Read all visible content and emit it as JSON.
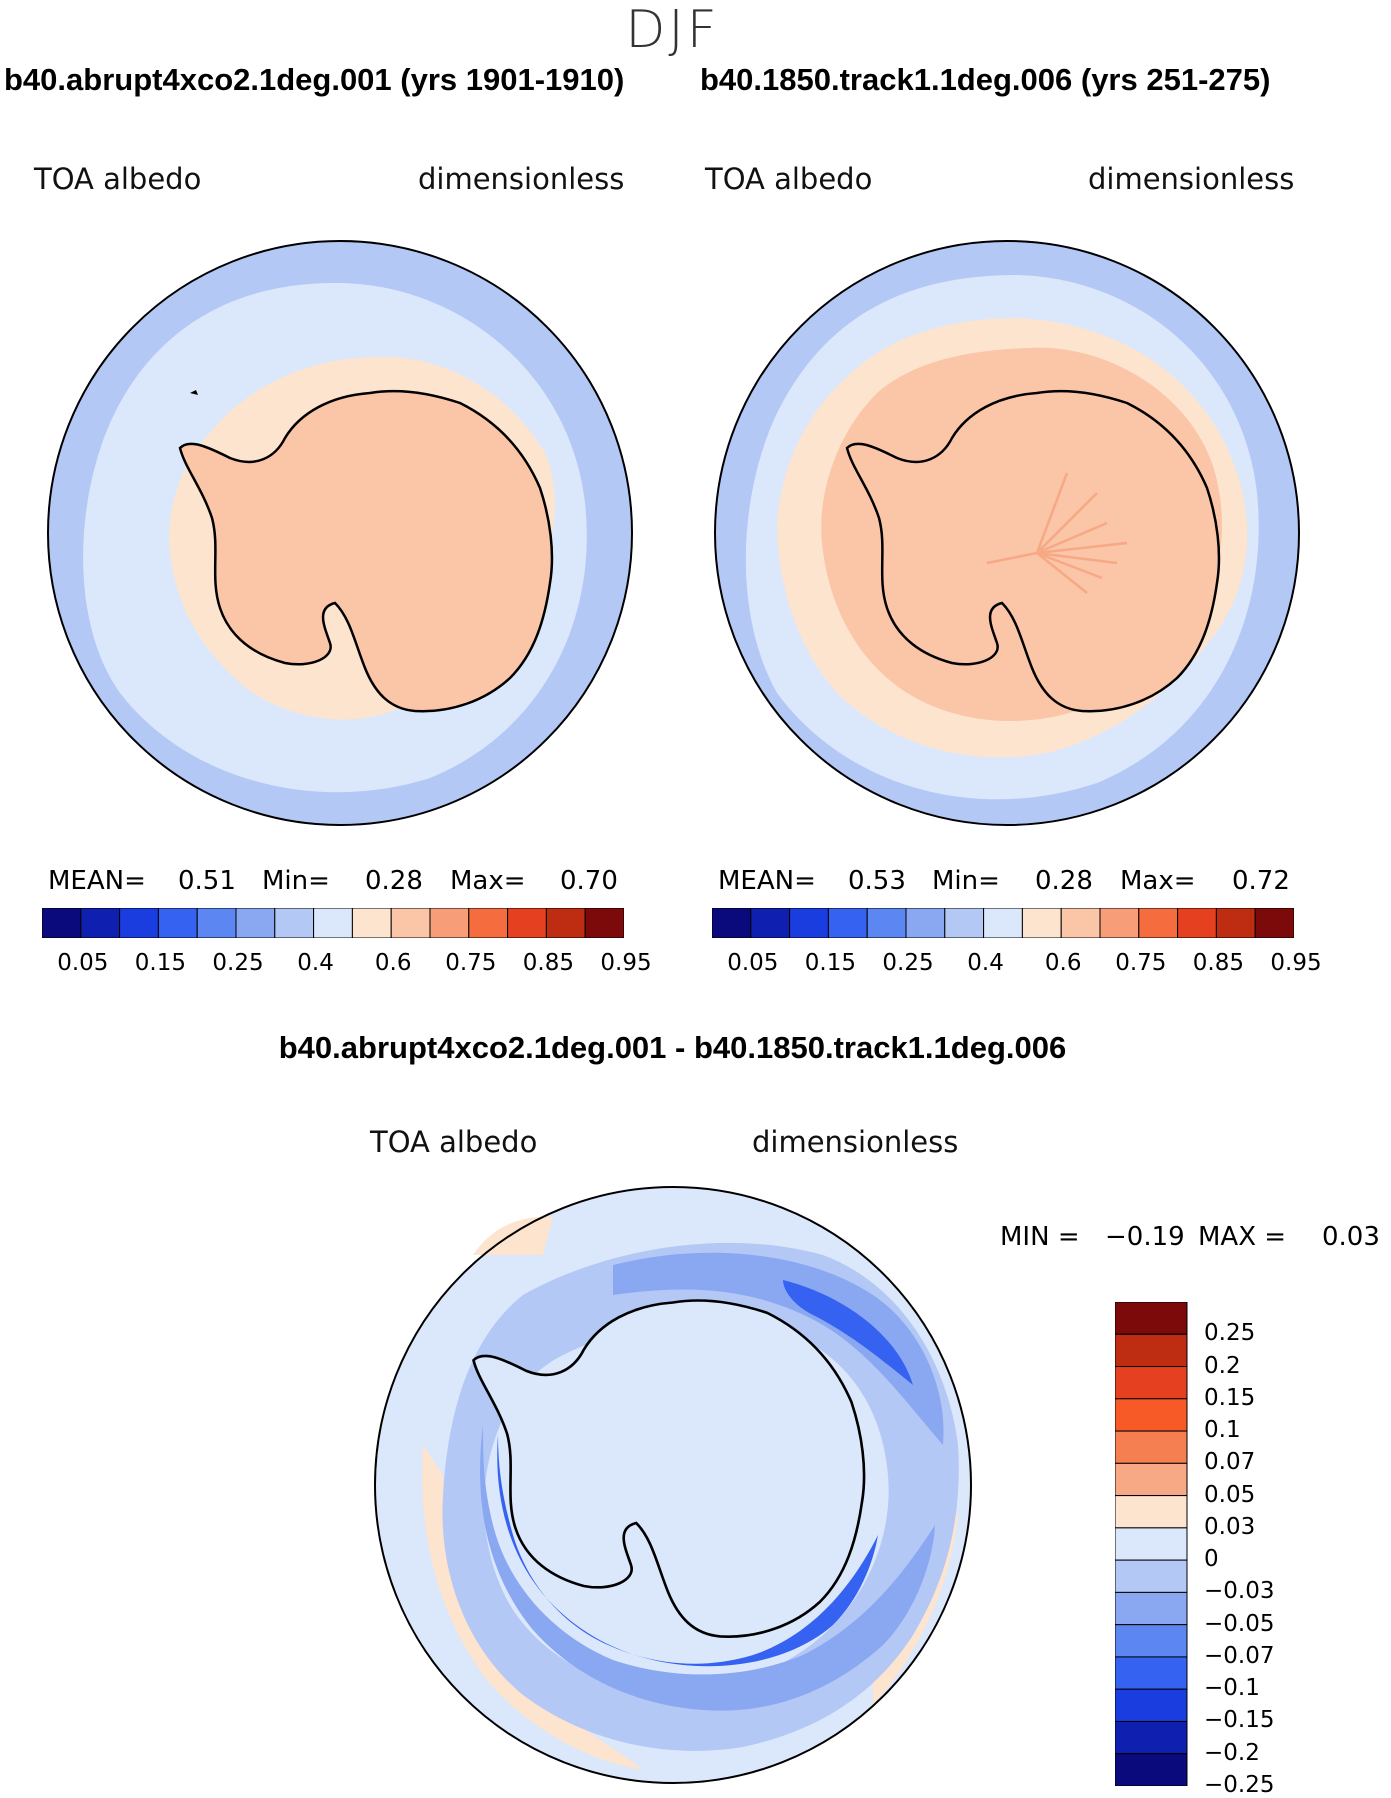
{
  "title": "DJF",
  "panels": {
    "left": {
      "case_title": "b40.abrupt4xco2.1deg.001 (yrs 1901-1910)",
      "variable": "TOA albedo",
      "units": "dimensionless",
      "mean_label": "MEAN=",
      "mean_value": "0.51",
      "min_label": "Min=",
      "min_value": "0.28",
      "max_label": "Max=",
      "max_value": "0.70"
    },
    "right": {
      "case_title": "b40.1850.track1.1deg.006 (yrs 251-275)",
      "variable": "TOA albedo",
      "units": "dimensionless",
      "mean_label": "MEAN=",
      "mean_value": "0.53",
      "min_label": "Min=",
      "min_value": "0.28",
      "max_label": "Max=",
      "max_value": "0.72"
    },
    "diff": {
      "case_title": "b40.abrupt4xco2.1deg.001 - b40.1850.track1.1deg.006",
      "variable": "TOA albedo",
      "units": "dimensionless",
      "min_label": "MIN =",
      "min_value": "−0.19",
      "max_label": "MAX =",
      "max_value": "0.03"
    }
  },
  "colorbar_abs": {
    "colors": [
      "#0a0a7d",
      "#0f1fb0",
      "#1a3de0",
      "#3562f0",
      "#5c86f2",
      "#8aa8f2",
      "#b4c8f6",
      "#dbe7fb",
      "#fde4cf",
      "#fbc5a8",
      "#f79e79",
      "#f56c3e",
      "#e54020",
      "#be2d12",
      "#7d0a0a"
    ],
    "tick_labels": [
      "0.05",
      "0.15",
      "0.25",
      "0.4",
      "0.6",
      "0.75",
      "0.85",
      "0.95"
    ]
  },
  "colorbar_diff": {
    "colors_top_to_bottom": [
      "#7d0a0a",
      "#be2d12",
      "#e54020",
      "#f85a27",
      "#f57f50",
      "#f7a884",
      "#fde4cf",
      "#dbe7fb",
      "#b4c8f6",
      "#8aa8f2",
      "#5c86f2",
      "#3562f0",
      "#1a3de0",
      "#0f1fb0",
      "#0a0a7d"
    ],
    "tick_labels": [
      "0.25",
      "0.2",
      "0.15",
      "0.1",
      "0.07",
      "0.05",
      "0.03",
      "0",
      "−0.03",
      "−0.05",
      "−0.07",
      "−0.1",
      "−0.15",
      "−0.2",
      "−0.25"
    ]
  },
  "map_colors": {
    "ocean_outer": "#b4c8f6",
    "ocean_mid": "#dbe7fb",
    "sea_ice_band": "#fde4cf",
    "continent": "#fbc5a8",
    "diff_background": "#dbe7fb",
    "diff_weak_neg": "#b4c8f6",
    "diff_mid_neg": "#8aa8f2",
    "diff_strong_neg": "#3562f0",
    "diff_pos": "#fde4cf"
  }
}
